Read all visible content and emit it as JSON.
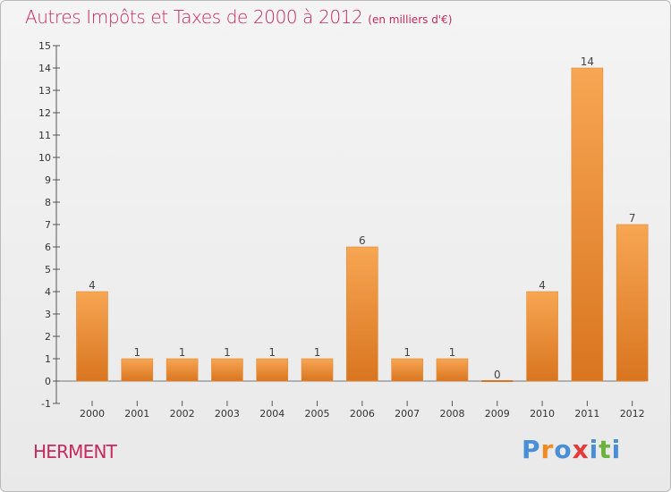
{
  "header": {
    "title": "Autres Impôts et Taxes de 2000 à 2012",
    "subtitle": "(en milliers d'€)"
  },
  "footer": {
    "commune": "HERMENT",
    "logo_letters": [
      "P",
      "r",
      "o",
      "x",
      "i",
      "t",
      "i"
    ]
  },
  "colors": {
    "title": "#c8295e",
    "bar_light": "#f7a653",
    "bar_dark": "#d97520",
    "logo": [
      "#4a8fd6",
      "#f28a1e",
      "#4a8fd6",
      "#e23c3c",
      "#4a8fd6",
      "#6bb33c",
      "#4a8fd6"
    ]
  },
  "chart_data": {
    "type": "bar",
    "categories": [
      "2000",
      "2001",
      "2002",
      "2003",
      "2004",
      "2005",
      "2006",
      "2007",
      "2008",
      "2009",
      "2010",
      "2011",
      "2012"
    ],
    "values": [
      4,
      1,
      1,
      1,
      1,
      1,
      6,
      1,
      1,
      0,
      4,
      14,
      7
    ],
    "value_labels": [
      "4",
      "1",
      "1",
      "1",
      "1",
      "1",
      "6",
      "1",
      "1",
      "0",
      "4",
      "14",
      "7"
    ],
    "y_ticks": [
      "-1",
      "0",
      "1",
      "2",
      "3",
      "4",
      "5",
      "6",
      "7",
      "8",
      "9",
      "10",
      "11",
      "12",
      "13",
      "14",
      "15"
    ],
    "ylim": [
      -1,
      15
    ],
    "title": "Autres Impôts et Taxes de 2000 à 2012",
    "xlabel": "",
    "ylabel": "",
    "grid": false,
    "legend": "none"
  }
}
